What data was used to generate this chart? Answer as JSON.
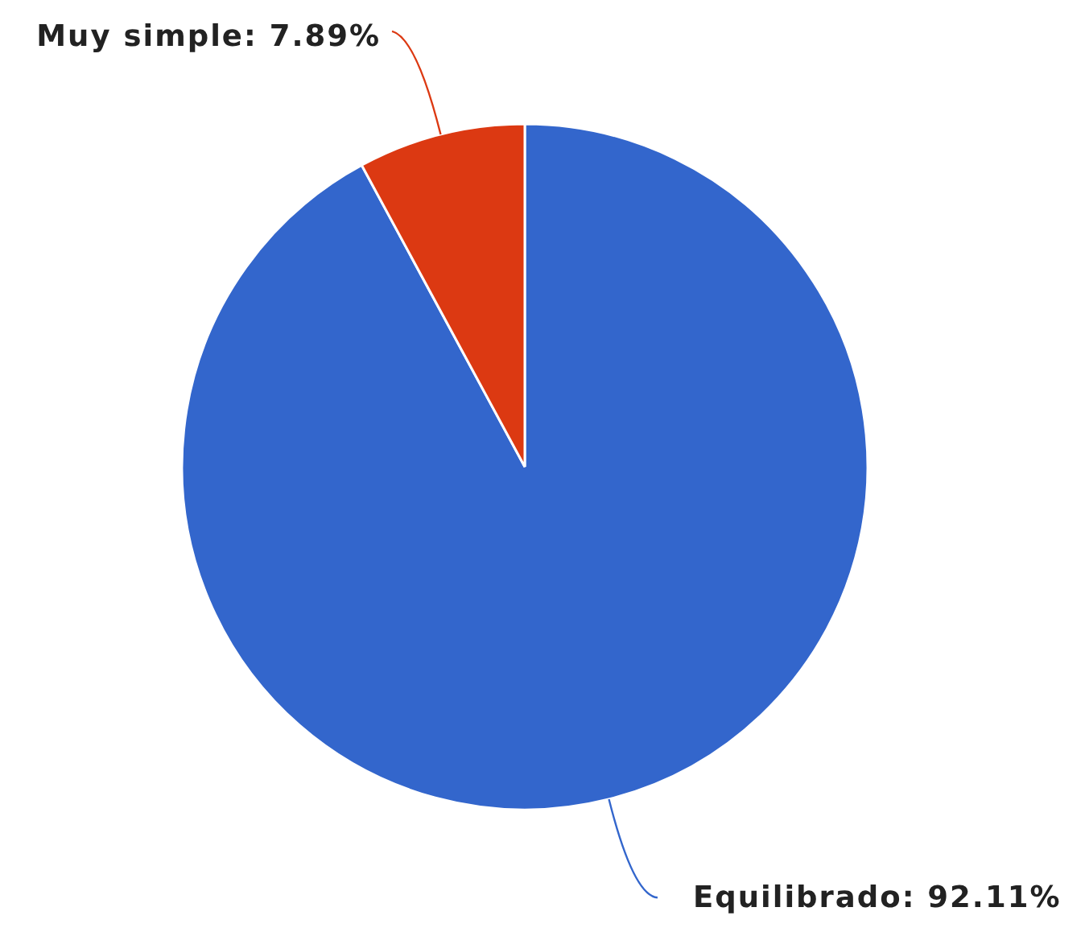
{
  "chart_data": {
    "type": "pie",
    "categories": [
      "Equilibrado",
      "Muy simple"
    ],
    "values": [
      92.11,
      7.89
    ],
    "colors": [
      "#3366cc",
      "#dc3912"
    ],
    "value_labels": [
      "92.11%",
      "7.89%"
    ]
  }
}
